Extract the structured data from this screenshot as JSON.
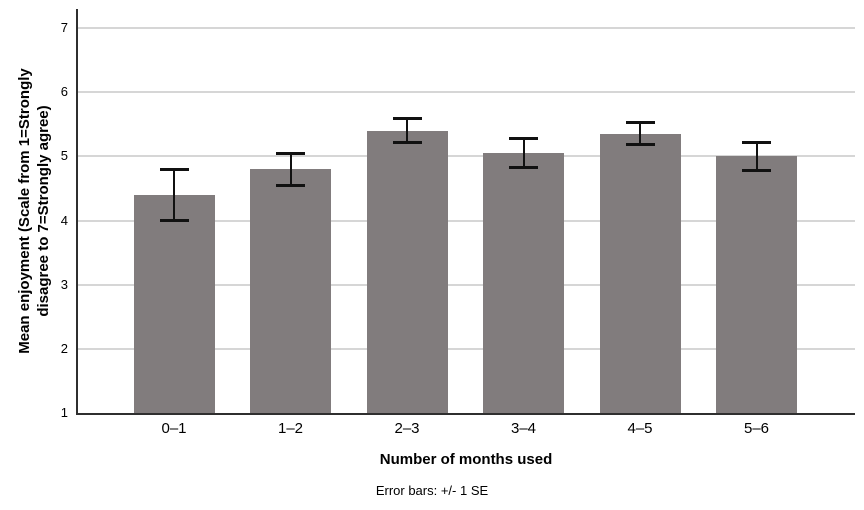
{
  "chart_data": {
    "type": "bar",
    "title": "",
    "categories": [
      "0–1",
      "1–2",
      "2–3",
      "3–4",
      "4–5",
      "5–6"
    ],
    "series": [
      {
        "name": "Mean enjoyment",
        "values": [
          4.4,
          4.8,
          5.4,
          5.05,
          5.35,
          5.0
        ],
        "standard_errors": [
          0.4,
          0.25,
          0.19,
          0.23,
          0.17,
          0.22
        ]
      }
    ],
    "xlabel": "Number of months used",
    "ylabel": "Mean enjoyment (Scale from 1=Strongly disagree to 7=Strongly agree)",
    "ylabel_line1": "Mean enjoyment (Scale from 1=Strongly",
    "ylabel_line2": "disagree to 7=Strongly agree)",
    "caption": "Error bars: +/- 1 SE",
    "y_ticks": [
      1,
      2,
      3,
      4,
      5,
      6,
      7
    ],
    "ylim": [
      1,
      7
    ],
    "grid": "horizontal",
    "legend": "none",
    "colors": {
      "bar": "#817c7d",
      "error_bar": "#111111",
      "axis": "#2f2f2f",
      "gridline": "#d6d6d6",
      "text": "#000000"
    }
  }
}
